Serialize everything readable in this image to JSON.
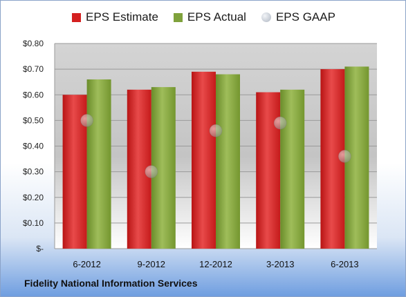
{
  "chart_data": {
    "type": "bar",
    "categories": [
      "6-2012",
      "9-2012",
      "12-2012",
      "3-2013",
      "6-2013"
    ],
    "series": [
      {
        "name": "EPS Estimate",
        "values": [
          0.6,
          0.62,
          0.69,
          0.61,
          0.7
        ],
        "color": "#d42020"
      },
      {
        "name": "EPS Actual",
        "values": [
          0.66,
          0.63,
          0.68,
          0.62,
          0.71
        ],
        "color": "#7fa23c"
      },
      {
        "name": "EPS GAAP",
        "values": [
          0.5,
          0.3,
          0.46,
          0.49,
          0.36
        ],
        "color": "#b5bfcb"
      }
    ],
    "ylim": [
      0,
      0.8
    ],
    "y_ticks": [
      "$-",
      "$0.10",
      "$0.20",
      "$0.30",
      "$0.40",
      "$0.50",
      "$0.60",
      "$0.70",
      "$0.80"
    ],
    "legend_position": "top",
    "grid": true
  },
  "footer": {
    "company": "Fidelity National Information Services"
  }
}
